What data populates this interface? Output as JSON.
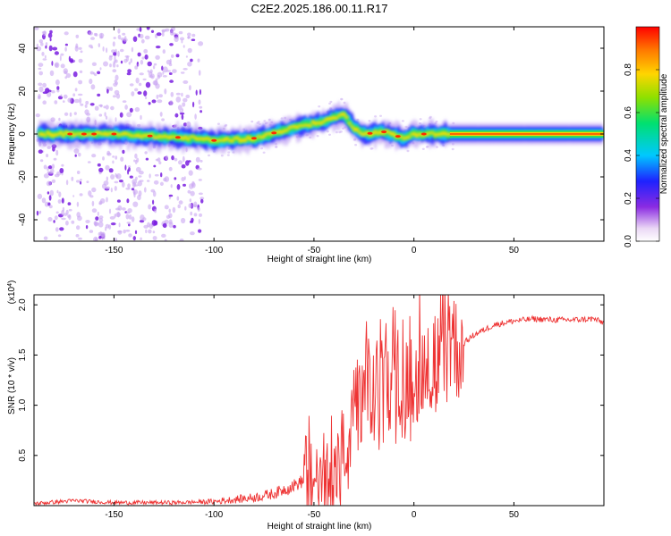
{
  "chart_data": [
    {
      "type": "heatmap",
      "title": "C2E2.2025.186.00.11.R17",
      "xlabel": "Height of straight line (km)",
      "ylabel": "Frequency (Hz)",
      "xlim": [
        -190,
        95
      ],
      "ylim": [
        -50,
        50
      ],
      "x_ticks": [
        -150,
        -100,
        -50,
        0,
        50
      ],
      "y_ticks": [
        -40,
        -20,
        0,
        20,
        40
      ],
      "colorbar": {
        "label": "Normalized spectral amplitude",
        "range": [
          0,
          1
        ],
        "ticks": [
          0.0,
          0.2,
          0.4,
          0.6,
          0.8
        ]
      },
      "ridge_frequency_hz": {
        "x": [
          -190,
          -150,
          -110,
          -100,
          -80,
          -60,
          -45,
          -35,
          -30,
          -25,
          -15,
          -5,
          0,
          10,
          20,
          95
        ],
        "y": [
          0,
          0,
          -2,
          -3,
          -2,
          3,
          6,
          9,
          3,
          0,
          1,
          -2,
          0,
          0,
          0,
          0
        ]
      }
    },
    {
      "type": "line",
      "xlabel": "Height of straight line (km)",
      "ylabel": "SNR (10 * v/v)",
      "y_multiplier": "(x10^4)",
      "xlim": [
        -190,
        95
      ],
      "ylim": [
        0,
        2.1
      ],
      "x_ticks": [
        -150,
        -100,
        -50,
        0,
        50
      ],
      "y_ticks": [
        0.5,
        1.0,
        1.5,
        2.0
      ],
      "series": [
        {
          "color": "#ee3333",
          "x": [
            -190,
            -170,
            -150,
            -120,
            -100,
            -90,
            -80,
            -70,
            -60,
            -50,
            -45,
            -40,
            -35,
            -30,
            -25,
            -20,
            -15,
            -10,
            -5,
            0,
            5,
            10,
            15,
            20,
            25,
            30,
            35,
            40,
            50,
            60,
            70,
            80,
            90,
            95
          ],
          "y": [
            0.02,
            0.05,
            0.03,
            0.03,
            0.04,
            0.06,
            0.08,
            0.12,
            0.2,
            0.3,
            0.18,
            0.3,
            0.5,
            0.8,
            1.1,
            1.05,
            1.2,
            1.15,
            1.3,
            1.25,
            1.45,
            1.4,
            1.5,
            1.55,
            1.62,
            1.7,
            1.75,
            1.8,
            1.84,
            1.86,
            1.85,
            1.85,
            1.86,
            1.82
          ]
        }
      ]
    }
  ]
}
